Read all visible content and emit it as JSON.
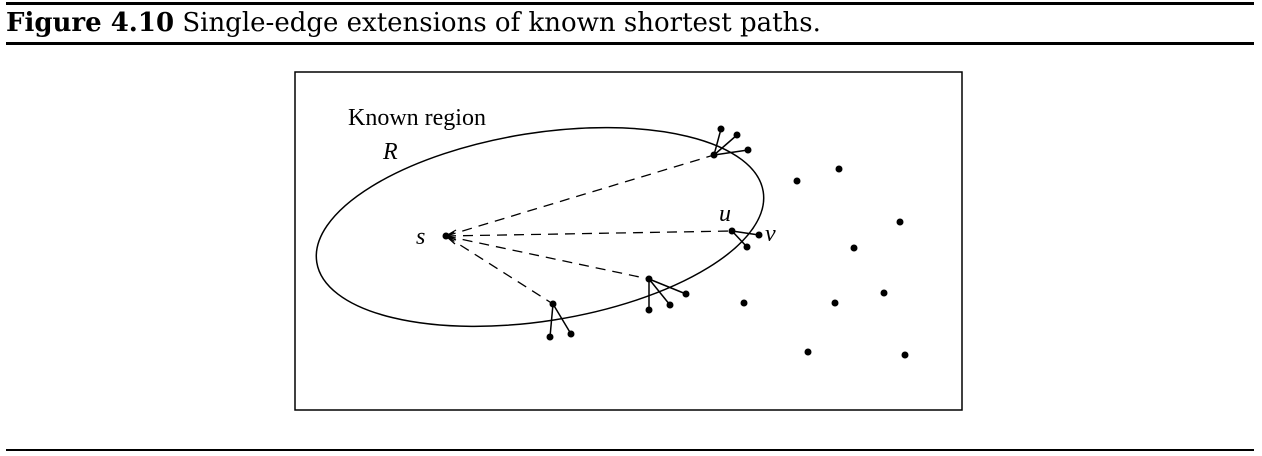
{
  "caption": {
    "figure_label": "Figure 4.10",
    "title": "Single-edge extensions of known shortest paths."
  },
  "diagram": {
    "region_label": "Known region",
    "region_symbol": "R",
    "source_label": "s",
    "node_u_label": "u",
    "node_v_label": "v"
  }
}
